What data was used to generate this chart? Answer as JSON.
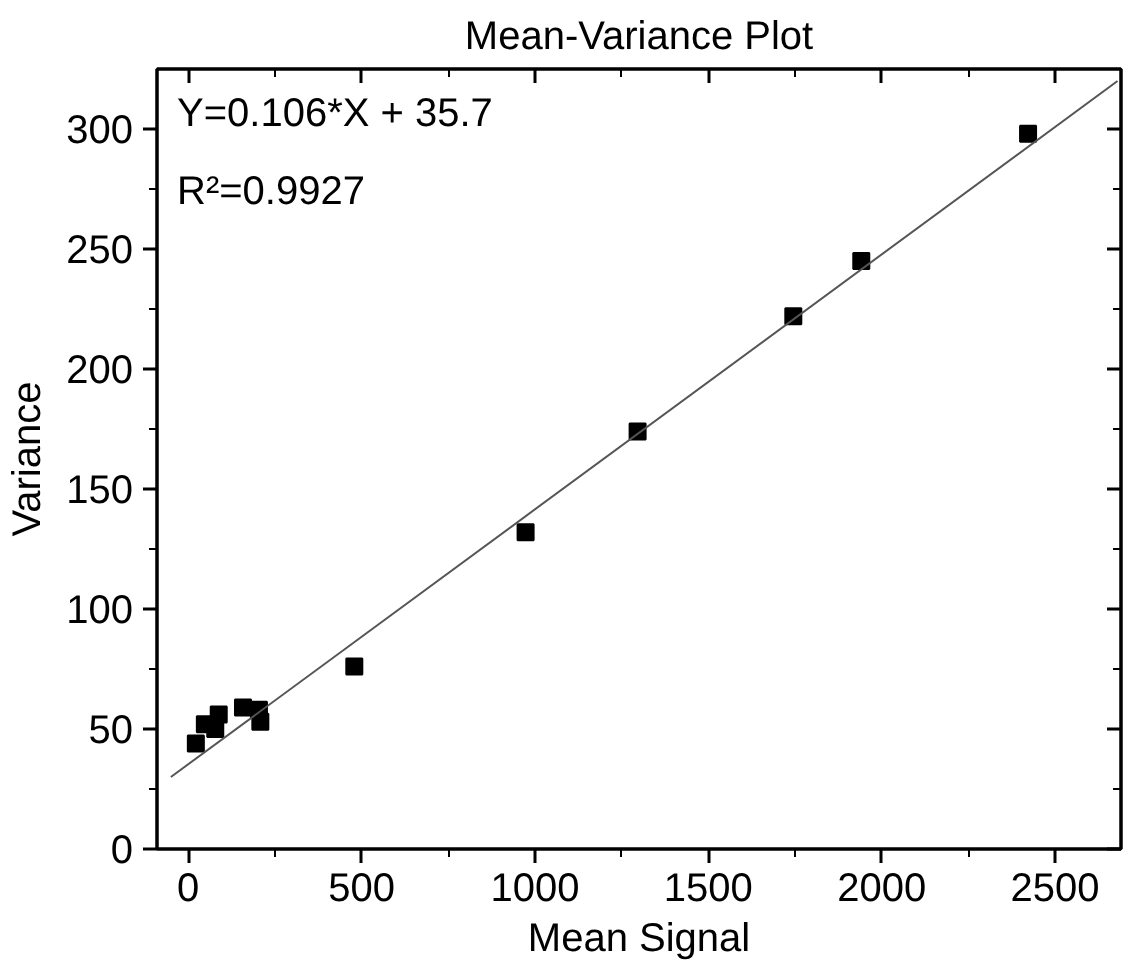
{
  "chart_data": {
    "type": "scatter",
    "title": "Mean-Variance Plot",
    "xlabel": "Mean Signal",
    "ylabel": "Variance",
    "annotations": [
      "Y=0.106*X + 35.7",
      "R²=0.9927"
    ],
    "xlim": [
      -90,
      2690
    ],
    "ylim": [
      0,
      325
    ],
    "xticks": [
      0,
      500,
      1000,
      1500,
      2000,
      2500
    ],
    "yticks": [
      0,
      50,
      100,
      150,
      200,
      250,
      300
    ],
    "grid": false,
    "series": [
      {
        "color": "#000000",
        "marker": "square",
        "x": [
          22,
          48,
          78,
          88,
          158,
          204,
          208,
          479,
          973,
          1296,
          1745,
          1941,
          2422
        ],
        "values": [
          44,
          52,
          50,
          56,
          59,
          58,
          53,
          76,
          132,
          174,
          222,
          245,
          298
        ]
      },
      {
        "type": "line",
        "color": "#555555",
        "line_style": "solid",
        "marker": "none",
        "x": [
          -50,
          2680
        ],
        "values": [
          30,
          320
        ]
      }
    ]
  }
}
